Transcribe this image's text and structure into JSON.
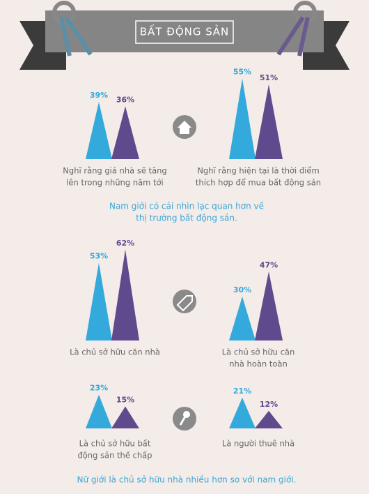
{
  "title": "BẤT ĐỘNG SẢN",
  "colors": [
    "#34a9dc",
    "#5f4a8d"
  ],
  "panels": [
    {
      "values": [
        39,
        36
      ],
      "value_labels": [
        "39%",
        "36%"
      ],
      "caption": [
        "Nghĩ rằng giá nhà sẽ tăng",
        "lên trong những năm tới"
      ]
    },
    {
      "values": [
        55,
        51
      ],
      "value_labels": [
        "55%",
        "51%"
      ],
      "caption": [
        "Nghĩ rằng hiện tại là thời điểm",
        "thích hợp để mua bất động sản"
      ]
    },
    {
      "values": [
        53,
        62
      ],
      "value_labels": [
        "53%",
        "62%"
      ],
      "caption": [
        "Là chủ sở hữu căn nhà"
      ]
    },
    {
      "values": [
        30,
        47
      ],
      "value_labels": [
        "30%",
        "47%"
      ],
      "caption": [
        "Là chủ sở hữu căn",
        "nhà hoàn toàn"
      ]
    },
    {
      "values": [
        23,
        15
      ],
      "value_labels": [
        "23%",
        "15%"
      ],
      "caption": [
        "Là chủ sở hữu bất",
        "động sản thế chấp"
      ]
    },
    {
      "values": [
        21,
        12
      ],
      "value_labels": [
        "21%",
        "12%"
      ],
      "caption": [
        "Là người thuê nhà"
      ]
    }
  ],
  "notes": [
    [
      "Nam giới có cái nhìn lạc quan hơn về",
      "thị trường bất động sản."
    ],
    [
      "Nữ giới là chủ sở hữu nhà nhiều hơn so với nam giới."
    ]
  ]
}
